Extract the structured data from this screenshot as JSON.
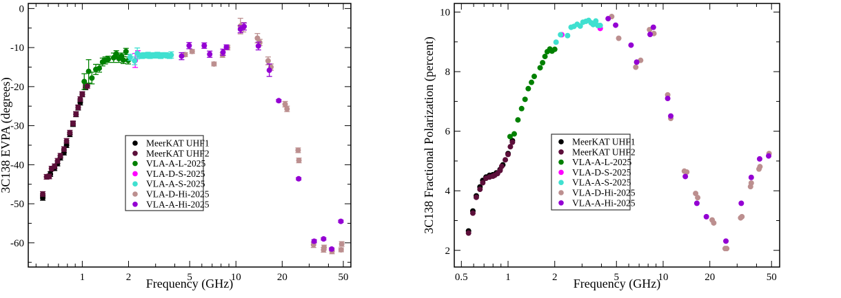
{
  "chart_data": [
    {
      "type": "scatter",
      "title": "",
      "xlabel": "Frequency (GHz)",
      "ylabel": "3C138 EVPA (degrees)",
      "xscale": "log",
      "xlim": [
        0.445,
        56
      ],
      "ylim": [
        -66.2,
        1.3
      ],
      "xticks": [
        1,
        2,
        5,
        10,
        20,
        50
      ],
      "xtick_labels": [
        "1",
        "2",
        "5",
        "10",
        "20",
        "50"
      ],
      "yticks": [
        0,
        -10,
        -20,
        -30,
        -40,
        -50,
        -60
      ],
      "ytick_labels": [
        "0",
        "-10",
        "-20",
        "-30",
        "-40",
        "-50",
        "-60"
      ],
      "yminor_step": 5,
      "grid": false,
      "legend_position": "center",
      "error_bars": true,
      "series": [
        {
          "name": "MeerKAT UHF1",
          "color": "#000000",
          "points": [
            [
              0.553,
              -48.5,
              0.6
            ],
            [
              0.62,
              -42.4,
              0.6
            ],
            [
              0.66,
              -40.9,
              0.6
            ],
            [
              0.69,
              -39.7,
              0.6
            ],
            [
              0.72,
              -38.2,
              0.6
            ],
            [
              0.76,
              -36.9,
              0.6
            ],
            [
              0.79,
              -35.0,
              0.6
            ],
            [
              0.83,
              -32.2,
              0.6
            ],
            [
              0.87,
              -29.6,
              0.6
            ],
            [
              0.91,
              -27.1,
              0.6
            ],
            [
              0.94,
              -25.4,
              0.6
            ],
            [
              0.97,
              -24.1,
              0.6
            ],
            [
              1.0,
              -22.0,
              0.6
            ],
            [
              1.05,
              -20.2,
              0.6
            ]
          ]
        },
        {
          "name": "MeerKAT UHF2",
          "color": "#5c0f3a",
          "points": [
            [
              0.553,
              -47.5,
              0.6
            ],
            [
              0.585,
              -43.1,
              0.6
            ],
            [
              0.61,
              -43.0,
              0.6
            ],
            [
              0.63,
              -41.0,
              0.6
            ],
            [
              0.66,
              -40.4,
              0.6
            ],
            [
              0.69,
              -39.0,
              0.6
            ],
            [
              0.72,
              -37.7,
              0.6
            ],
            [
              0.76,
              -36.0,
              0.6
            ],
            [
              0.79,
              -33.9,
              0.6
            ],
            [
              0.83,
              -31.8,
              0.6
            ],
            [
              0.87,
              -29.4,
              0.6
            ],
            [
              0.91,
              -27.0,
              0.6
            ],
            [
              0.94,
              -25.3,
              0.6
            ],
            [
              0.97,
              -23.2,
              0.6
            ],
            [
              1.0,
              -21.9,
              0.6
            ],
            [
              1.05,
              -20.1,
              0.6
            ],
            [
              1.08,
              -19.8,
              0.6
            ]
          ]
        },
        {
          "name": "VLA-A-L-2025",
          "color": "#008000",
          "points": [
            [
              1.03,
              -18.7,
              2.0
            ],
            [
              1.1,
              -16.1,
              3.0
            ],
            [
              1.155,
              -17.8,
              1.5
            ],
            [
              1.225,
              -15.6,
              1.3
            ],
            [
              1.29,
              -15.3,
              1.0
            ],
            [
              1.355,
              -13.7,
              1.0
            ],
            [
              1.41,
              -13.3,
              0.9
            ],
            [
              1.476,
              -13.0,
              0.8
            ],
            [
              1.6,
              -12.6,
              1.2
            ],
            [
              1.665,
              -11.6,
              0.8
            ],
            [
              1.73,
              -12.8,
              1.0
            ],
            [
              1.8,
              -12.2,
              0.8
            ],
            [
              1.85,
              -13.2,
              0.9
            ],
            [
              1.925,
              -11.0,
              0.8
            ],
            [
              1.99,
              -13.3,
              0.9
            ]
          ]
        },
        {
          "name": "VLA-D-S-2025",
          "color": "#ff00ff",
          "points": [
            [
              2.21,
              -13.3,
              1.8
            ],
            [
              2.3,
              -11.6,
              0.8
            ]
          ]
        },
        {
          "name": "VLA-A-S-2025",
          "color": "#40e0d0",
          "points": [
            [
              2.05,
              -12.5,
              0.8
            ],
            [
              2.19,
              -13.4,
              1.0
            ],
            [
              2.28,
              -11.5,
              1.4
            ],
            [
              2.38,
              -12.0,
              0.6
            ],
            [
              2.45,
              -12.2,
              0.6
            ],
            [
              2.52,
              -11.9,
              0.6
            ],
            [
              2.6,
              -12.1,
              0.6
            ],
            [
              2.68,
              -11.8,
              0.6
            ],
            [
              2.76,
              -12.2,
              0.6
            ],
            [
              2.84,
              -12.0,
              0.6
            ],
            [
              2.92,
              -11.9,
              0.6
            ],
            [
              3.0,
              -12.1,
              0.6
            ],
            [
              3.08,
              -11.8,
              0.6
            ],
            [
              3.16,
              -12.0,
              0.6
            ],
            [
              3.24,
              -12.2,
              0.6
            ],
            [
              3.32,
              -11.9,
              0.6
            ],
            [
              3.4,
              -12.0,
              0.6
            ],
            [
              3.5,
              -11.9,
              0.6
            ],
            [
              3.6,
              -12.1,
              0.6
            ],
            [
              3.7,
              -12.2,
              0.6
            ],
            [
              3.79,
              -11.9,
              0.8
            ]
          ]
        },
        {
          "name": "VLA-D-Hi-2025",
          "color": "#bc8f8f",
          "points": [
            [
              4.67,
              -11.8,
              0.5
            ],
            [
              5.19,
              -11.0,
              0.5
            ],
            [
              7.2,
              -14.2,
              0.5
            ],
            [
              8.18,
              -11.9,
              0.6
            ],
            [
              8.83,
              -10.0,
              0.6
            ],
            [
              10.7,
              -4.5,
              2.0
            ],
            [
              11.2,
              -4.8,
              1.2
            ],
            [
              13.8,
              -7.6,
              1.2
            ],
            [
              14.3,
              -8.7,
              0.8
            ],
            [
              16.2,
              -13.4,
              1.0
            ],
            [
              16.9,
              -15.0,
              0.8
            ],
            [
              20.9,
              -24.5,
              0.7
            ],
            [
              21.5,
              -25.7,
              0.7
            ],
            [
              25.4,
              -36.3,
              0.6
            ],
            [
              25.7,
              -38.9,
              0.6
            ],
            [
              32.0,
              -60.5,
              0.7
            ],
            [
              37.2,
              -61.8,
              0.6
            ],
            [
              37.5,
              -61.2,
              0.6
            ],
            [
              42.2,
              -62.2,
              0.6
            ],
            [
              48.4,
              -61.8,
              0.5
            ],
            [
              48.8,
              -60.3,
              0.6
            ]
          ]
        },
        {
          "name": "VLA-A-Hi-2025",
          "color": "#9400d3",
          "points": [
            [
              4.43,
              -12.2,
              0.9
            ],
            [
              4.96,
              -9.5,
              0.8
            ],
            [
              6.22,
              -9.5,
              0.7
            ],
            [
              6.75,
              -11.7,
              0.8
            ],
            [
              8.24,
              -11.2,
              0.8
            ],
            [
              8.67,
              -9.9,
              0.6
            ],
            [
              10.7,
              -5.3,
              0.9
            ],
            [
              11.3,
              -4.6,
              0.9
            ],
            [
              14.0,
              -9.6,
              1.0
            ],
            [
              16.5,
              -15.8,
              1.6
            ],
            [
              19.0,
              -23.6,
              0.3
            ],
            [
              25.6,
              -43.6,
              0.3
            ],
            [
              32.3,
              -59.6,
              0.4
            ],
            [
              37.2,
              -59.0,
              0.3
            ],
            [
              42.0,
              -61.6,
              0.3
            ],
            [
              48.2,
              -54.5,
              0.3
            ]
          ]
        }
      ]
    },
    {
      "type": "scatter",
      "title": "",
      "xlabel": "Frequency (GHz)",
      "ylabel": "3C138 Fractional Polarization (percent)",
      "xscale": "log",
      "xlim": [
        0.45,
        56.4
      ],
      "ylim": [
        1.44,
        10.29
      ],
      "xticks": [
        0.5,
        1,
        2,
        5,
        10,
        20,
        50
      ],
      "xtick_labels": [
        "0.5",
        "1",
        "2",
        "5",
        "10",
        "20",
        "50"
      ],
      "yticks": [
        2,
        4,
        6,
        8,
        10
      ],
      "ytick_labels": [
        "2",
        "4",
        "6",
        "8",
        "10"
      ],
      "yminor_step": 1,
      "grid": false,
      "legend_position": "center",
      "error_bars": false,
      "series": [
        {
          "name": "MeerKAT UHF1",
          "color": "#000000",
          "points": [
            [
              0.556,
              2.65
            ],
            [
              0.593,
              3.32
            ],
            [
              0.624,
              3.83
            ],
            [
              0.659,
              4.13
            ],
            [
              0.687,
              4.35
            ],
            [
              0.721,
              4.46
            ],
            [
              0.759,
              4.52
            ],
            [
              0.798,
              4.54
            ],
            [
              0.84,
              4.6
            ],
            [
              0.888,
              4.71
            ],
            [
              0.925,
              4.87
            ],
            [
              1.0,
              5.25
            ],
            [
              1.067,
              5.68
            ]
          ]
        },
        {
          "name": "MeerKAT UHF2",
          "color": "#5c0f3a",
          "points": [
            [
              0.556,
              2.58
            ],
            [
              0.593,
              3.25
            ],
            [
              0.624,
              3.78
            ],
            [
              0.659,
              4.05
            ],
            [
              0.687,
              4.27
            ],
            [
              0.721,
              4.42
            ],
            [
              0.759,
              4.46
            ],
            [
              0.798,
              4.49
            ],
            [
              0.82,
              4.52
            ],
            [
              0.855,
              4.58
            ],
            [
              0.888,
              4.68
            ],
            [
              0.91,
              4.82
            ],
            [
              0.96,
              5.04
            ],
            [
              1.0,
              5.22
            ],
            [
              1.035,
              5.48
            ],
            [
              1.067,
              5.63
            ]
          ]
        },
        {
          "name": "VLA-A-L-2025",
          "color": "#008000",
          "points": [
            [
              1.03,
              5.82
            ],
            [
              1.096,
              5.91
            ],
            [
              1.158,
              6.38
            ],
            [
              1.223,
              6.76
            ],
            [
              1.287,
              7.07
            ],
            [
              1.35,
              7.43
            ],
            [
              1.416,
              7.64
            ],
            [
              1.475,
              7.84
            ],
            [
              1.61,
              8.13
            ],
            [
              1.67,
              8.3
            ],
            [
              1.73,
              8.51
            ],
            [
              1.79,
              8.67
            ],
            [
              1.86,
              8.76
            ],
            [
              1.92,
              8.69
            ],
            [
              2.0,
              8.75
            ]
          ]
        },
        {
          "name": "VLA-D-S-2025",
          "color": "#ff00ff",
          "points": [
            [
              2.22,
              9.24
            ],
            [
              3.93,
              9.45
            ]
          ]
        },
        {
          "name": "VLA-A-S-2025",
          "color": "#40e0d0",
          "points": [
            [
              2.04,
              8.99
            ],
            [
              2.18,
              9.24
            ],
            [
              2.42,
              9.21
            ],
            [
              2.55,
              9.49
            ],
            [
              2.66,
              9.52
            ],
            [
              2.79,
              9.59
            ],
            [
              2.92,
              9.53
            ],
            [
              3.04,
              9.66
            ],
            [
              3.18,
              9.69
            ],
            [
              3.31,
              9.72
            ],
            [
              3.43,
              9.64
            ],
            [
              3.54,
              9.58
            ],
            [
              3.68,
              9.7
            ],
            [
              3.79,
              9.55
            ],
            [
              3.93,
              9.55
            ]
          ]
        },
        {
          "name": "VLA-D-Hi-2025",
          "color": "#bc8f8f",
          "points": [
            [
              4.66,
              9.85
            ],
            [
              5.17,
              9.12
            ],
            [
              6.66,
              8.15
            ],
            [
              7.16,
              8.38
            ],
            [
              8.17,
              9.41
            ],
            [
              8.72,
              9.28
            ],
            [
              10.7,
              7.22
            ],
            [
              11.2,
              6.43
            ],
            [
              13.7,
              4.66
            ],
            [
              14.2,
              4.63
            ],
            [
              16.2,
              3.91
            ],
            [
              16.7,
              3.77
            ],
            [
              20.7,
              3.02
            ],
            [
              21.2,
              2.92
            ],
            [
              25.1,
              2.06
            ],
            [
              25.7,
              2.06
            ],
            [
              31.6,
              3.09
            ],
            [
              32.2,
              3.13
            ],
            [
              36.6,
              4.14
            ],
            [
              37.0,
              4.26
            ],
            [
              41.5,
              4.73
            ],
            [
              42.1,
              4.81
            ],
            [
              48.2,
              5.25
            ]
          ]
        },
        {
          "name": "VLA-A-Hi-2025",
          "color": "#9400d3",
          "points": [
            [
              4.42,
              9.78
            ],
            [
              4.94,
              9.56
            ],
            [
              6.21,
              8.89
            ],
            [
              6.75,
              8.32
            ],
            [
              8.24,
              9.25
            ],
            [
              8.65,
              9.49
            ],
            [
              10.7,
              7.1
            ],
            [
              11.2,
              6.51
            ],
            [
              13.9,
              4.48
            ],
            [
              16.5,
              3.58
            ],
            [
              19.0,
              3.13
            ],
            [
              25.4,
              2.31
            ],
            [
              31.9,
              3.58
            ],
            [
              37.0,
              4.45
            ],
            [
              41.9,
              5.07
            ],
            [
              47.9,
              5.17
            ]
          ]
        }
      ]
    }
  ]
}
